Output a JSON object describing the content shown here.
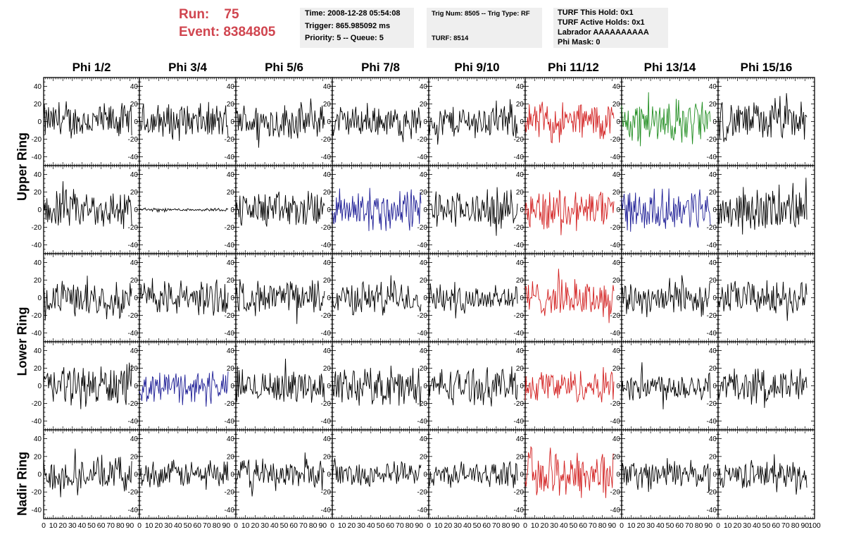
{
  "run": {
    "run_label": "Run:",
    "run_value": "75",
    "event_label": "Event:",
    "event_value": "8384805"
  },
  "box1": {
    "time": "Time: 2008-12-28 05:54:08",
    "trigger": "Trigger: 865.985092 ms",
    "priority": "Priority: 5 -- Queue: 5"
  },
  "box2": {
    "trig": "Trig Num: 8505 -- Trig Type: RF",
    "turf": "TURF: 8514"
  },
  "box3": {
    "hold": "TURF This Hold: 0x1",
    "active": "TURF Active Holds: 0x1",
    "labrador": "Labrador AAAAAAAAAA",
    "phimask": "Phi Mask: 0"
  },
  "columns": [
    "Phi 1/2",
    "Phi 3/4",
    "Phi 5/6",
    "Phi 7/8",
    "Phi 9/10",
    "Phi 11/12",
    "Phi 13/14",
    "Phi 15/16"
  ],
  "rows": [
    "Upper Ring",
    "Lower Ring",
    "Nadir Ring"
  ],
  "colors": {
    "black": "#000000",
    "red": "#d21e1e",
    "green": "#1e8c1e",
    "blue": "#1e1e96",
    "title_red": "#d0454f",
    "box_bg": "#efefef"
  },
  "chart_data": {
    "type": "line",
    "x_ticks": [
      "0",
      "10",
      "20",
      "30",
      "40",
      "50",
      "60",
      "70",
      "80",
      "90",
      "100"
    ],
    "y_ticks": [
      "-40",
      "-20",
      "0",
      "20",
      "40"
    ],
    "xlim": [
      0,
      100
    ],
    "ylim": [
      -50,
      50
    ],
    "panel_colors": [
      [
        "black",
        "black",
        "black",
        "black",
        "black",
        "red",
        "green",
        "black"
      ],
      [
        "black",
        "black",
        "black",
        "blue",
        "black",
        "red",
        "blue",
        "black"
      ],
      [
        "black",
        "black",
        "black",
        "black",
        "black",
        "red",
        "black",
        "black"
      ],
      [
        "black",
        "blue",
        "black",
        "black",
        "black",
        "red",
        "black",
        "black"
      ],
      [
        "black",
        "black",
        "black",
        "black",
        "black",
        "red",
        "black",
        "black"
      ]
    ],
    "panel_amplitudes": [
      [
        24,
        24,
        24,
        20,
        22,
        26,
        30,
        26
      ],
      [
        26,
        2,
        24,
        28,
        24,
        28,
        26,
        28
      ],
      [
        22,
        24,
        22,
        22,
        20,
        24,
        24,
        22
      ],
      [
        28,
        20,
        22,
        26,
        24,
        22,
        20,
        24
      ],
      [
        22,
        18,
        20,
        16,
        16,
        32,
        18,
        18
      ]
    ]
  }
}
